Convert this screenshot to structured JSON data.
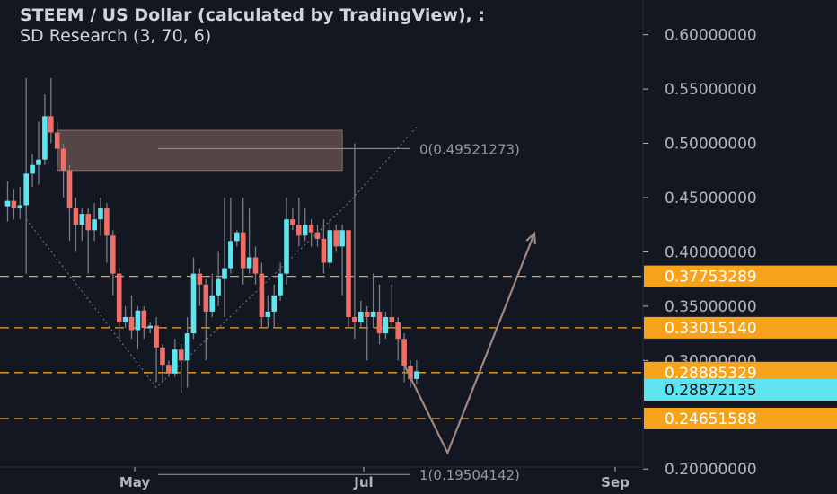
{
  "header": {
    "title": "STEEM / US Dollar (calculated by TradingView), :",
    "indicator": "SD Research (3, 70, 6)"
  },
  "colors": {
    "background": "#131722",
    "axis_text": "#b2b5be",
    "up_candle": "#5ee6f0",
    "down_candle": "#ef6f68",
    "wick": "#787b86",
    "level_line": "#f7a21b",
    "last_price_tag": "#5ee6f0",
    "fib_line": "#9598a1",
    "arrow": "#a1887f",
    "zone_fill": "#8d6e63"
  },
  "chart_data": {
    "type": "candlestick",
    "title": "STEEM / US Dollar (calculated by TradingView)",
    "xlabel": "",
    "ylabel": "",
    "ylim": [
      0.177,
      0.632
    ],
    "y_ticks": [
      {
        "value": 0.6,
        "label": "0.60000000"
      },
      {
        "value": 0.55,
        "label": "0.55000000"
      },
      {
        "value": 0.5,
        "label": "0.50000000"
      },
      {
        "value": 0.45,
        "label": "0.45000000"
      },
      {
        "value": 0.4,
        "label": "0.40000000"
      },
      {
        "value": 0.35,
        "label": "0.35000000"
      },
      {
        "value": 0.3,
        "label": "0.30000000"
      },
      {
        "value": 0.2,
        "label": "0.20000000"
      }
    ],
    "x_ticks": [
      "May",
      "Jul",
      "Sep"
    ],
    "price_levels": [
      {
        "value": 0.37753289,
        "label": "0.37753289"
      },
      {
        "value": 0.3301514,
        "label": "0.33015140"
      },
      {
        "value": 0.28885329,
        "label": "0.28885329"
      },
      {
        "value": 0.24651588,
        "label": "0.24651588"
      }
    ],
    "last_price": {
      "value": 0.28872135,
      "label": "0.28872135"
    },
    "fib_levels": [
      {
        "value": 0.49521273,
        "label": "0(0.49521273)"
      },
      {
        "value": 0.19504142,
        "label": "1(0.19504142)"
      }
    ],
    "projection_path": [
      {
        "bar": 64,
        "value": 0.296
      },
      {
        "bar": 71,
        "value": 0.215
      },
      {
        "bar": 85,
        "value": 0.417
      }
    ],
    "supply_zone": {
      "bar_start": 8,
      "bar_end": 54,
      "top": 0.512,
      "bottom": 0.475
    },
    "zigzag_pattern": [
      {
        "bar": 3,
        "value": 0.43
      },
      {
        "bar": 24,
        "value": 0.275
      },
      {
        "bar": 55,
        "value": 0.445
      },
      {
        "bar": 66,
        "value": 0.515
      }
    ],
    "candles": [
      [
        0.442,
        0.447,
        0.465,
        0.428
      ],
      [
        0.447,
        0.44,
        0.458,
        0.43
      ],
      [
        0.44,
        0.443,
        0.46,
        0.43
      ],
      [
        0.443,
        0.472,
        0.56,
        0.38
      ],
      [
        0.472,
        0.48,
        0.49,
        0.46
      ],
      [
        0.48,
        0.485,
        0.52,
        0.462
      ],
      [
        0.485,
        0.525,
        0.545,
        0.48
      ],
      [
        0.525,
        0.51,
        0.56,
        0.5
      ],
      [
        0.51,
        0.495,
        0.52,
        0.48
      ],
      [
        0.495,
        0.475,
        0.5,
        0.45
      ],
      [
        0.475,
        0.44,
        0.48,
        0.41
      ],
      [
        0.44,
        0.425,
        0.45,
        0.4
      ],
      [
        0.425,
        0.435,
        0.44,
        0.41
      ],
      [
        0.435,
        0.42,
        0.44,
        0.38
      ],
      [
        0.42,
        0.43,
        0.445,
        0.41
      ],
      [
        0.43,
        0.44,
        0.45,
        0.415
      ],
      [
        0.44,
        0.415,
        0.445,
        0.39
      ],
      [
        0.415,
        0.38,
        0.42,
        0.36
      ],
      [
        0.38,
        0.335,
        0.385,
        0.32
      ],
      [
        0.335,
        0.34,
        0.35,
        0.33
      ],
      [
        0.34,
        0.328,
        0.36,
        0.32
      ],
      [
        0.328,
        0.346,
        0.35,
        0.31
      ],
      [
        0.346,
        0.33,
        0.35,
        0.32
      ],
      [
        0.33,
        0.332,
        0.335,
        0.325
      ],
      [
        0.332,
        0.312,
        0.34,
        0.28
      ],
      [
        0.312,
        0.296,
        0.315,
        0.28
      ],
      [
        0.296,
        0.288,
        0.3,
        0.285
      ],
      [
        0.288,
        0.31,
        0.32,
        0.285
      ],
      [
        0.31,
        0.3,
        0.315,
        0.27
      ],
      [
        0.3,
        0.325,
        0.34,
        0.275
      ],
      [
        0.325,
        0.38,
        0.395,
        0.32
      ],
      [
        0.38,
        0.37,
        0.385,
        0.35
      ],
      [
        0.37,
        0.345,
        0.375,
        0.3
      ],
      [
        0.345,
        0.36,
        0.38,
        0.34
      ],
      [
        0.36,
        0.375,
        0.4,
        0.35
      ],
      [
        0.375,
        0.385,
        0.45,
        0.34
      ],
      [
        0.385,
        0.41,
        0.45,
        0.38
      ],
      [
        0.41,
        0.418,
        0.42,
        0.405
      ],
      [
        0.418,
        0.385,
        0.45,
        0.37
      ],
      [
        0.385,
        0.395,
        0.44,
        0.38
      ],
      [
        0.395,
        0.38,
        0.405,
        0.37
      ],
      [
        0.38,
        0.34,
        0.39,
        0.33
      ],
      [
        0.34,
        0.345,
        0.36,
        0.33
      ],
      [
        0.345,
        0.36,
        0.37,
        0.33
      ],
      [
        0.36,
        0.38,
        0.39,
        0.355
      ],
      [
        0.38,
        0.43,
        0.45,
        0.37
      ],
      [
        0.43,
        0.425,
        0.44,
        0.42
      ],
      [
        0.425,
        0.415,
        0.45,
        0.405
      ],
      [
        0.415,
        0.425,
        0.44,
        0.41
      ],
      [
        0.425,
        0.418,
        0.43,
        0.405
      ],
      [
        0.418,
        0.412,
        0.425,
        0.405
      ],
      [
        0.412,
        0.39,
        0.43,
        0.38
      ],
      [
        0.39,
        0.42,
        0.43,
        0.385
      ],
      [
        0.42,
        0.405,
        0.425,
        0.4
      ],
      [
        0.405,
        0.42,
        0.425,
        0.36
      ],
      [
        0.42,
        0.34,
        0.42,
        0.33
      ],
      [
        0.34,
        0.335,
        0.5,
        0.32
      ],
      [
        0.335,
        0.345,
        0.355,
        0.33
      ],
      [
        0.345,
        0.34,
        0.35,
        0.3
      ],
      [
        0.34,
        0.345,
        0.38,
        0.33
      ],
      [
        0.345,
        0.325,
        0.37,
        0.315
      ],
      [
        0.325,
        0.34,
        0.345,
        0.32
      ],
      [
        0.34,
        0.335,
        0.37,
        0.33
      ],
      [
        0.335,
        0.32,
        0.34,
        0.3
      ],
      [
        0.32,
        0.295,
        0.325,
        0.28
      ],
      [
        0.295,
        0.283,
        0.3,
        0.275
      ],
      [
        0.283,
        0.29,
        0.3,
        0.278
      ]
    ]
  }
}
